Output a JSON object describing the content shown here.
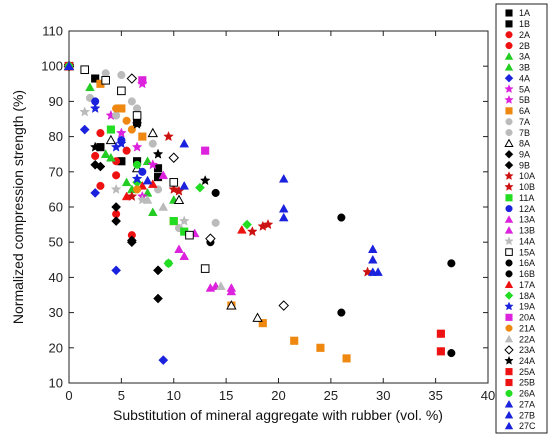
{
  "chart_data": {
    "type": "scatter",
    "xlabel": "Substitution of mineral aggregate with rubber (vol. %)",
    "ylabel": "Normalized compression strength (%)",
    "xlim": [
      0,
      40
    ],
    "ylim": [
      10,
      110
    ],
    "xticks": [
      0,
      5,
      10,
      15,
      20,
      25,
      30,
      35,
      40
    ],
    "yticks": [
      10,
      20,
      30,
      40,
      50,
      60,
      70,
      80,
      90,
      100,
      110
    ],
    "grid": false,
    "legend_position": "right",
    "series": [
      {
        "name": "1A",
        "marker": "square",
        "color": "#000000",
        "filled": true,
        "points": [
          [
            0,
            100
          ],
          [
            2.5,
            96.5
          ],
          [
            5,
            73
          ],
          [
            8.5,
            71
          ],
          [
            8.5,
            68.5
          ]
        ]
      },
      {
        "name": "1B",
        "marker": "square",
        "color": "#000000",
        "filled": true,
        "points": [
          [
            0,
            100
          ],
          [
            3,
            77
          ],
          [
            6.5,
            73
          ],
          [
            6.5,
            84
          ]
        ]
      },
      {
        "name": "2A",
        "marker": "circle",
        "color": "#ee1111",
        "filled": true,
        "points": [
          [
            0,
            100
          ],
          [
            2.5,
            74.5
          ],
          [
            3,
            66
          ],
          [
            4.5,
            58
          ],
          [
            6,
            52
          ]
        ]
      },
      {
        "name": "2B",
        "marker": "circle",
        "color": "#ee1111",
        "filled": true,
        "points": [
          [
            0,
            100
          ],
          [
            3,
            81
          ],
          [
            4.5,
            73
          ],
          [
            5.5,
            76
          ],
          [
            4.5,
            69
          ]
        ]
      },
      {
        "name": "3A",
        "marker": "triangle",
        "color": "#22cc22",
        "filled": true,
        "points": [
          [
            0,
            100
          ],
          [
            2,
            94
          ],
          [
            3.5,
            75
          ],
          [
            5.5,
            67
          ],
          [
            7.5,
            64
          ],
          [
            8,
            58.5
          ]
        ]
      },
      {
        "name": "3B",
        "marker": "triangle",
        "color": "#22cc22",
        "filled": true,
        "points": [
          [
            0,
            100
          ],
          [
            4,
            74
          ],
          [
            6,
            65
          ],
          [
            7.5,
            73
          ],
          [
            10,
            62
          ]
        ]
      },
      {
        "name": "4A",
        "marker": "diamond",
        "color": "#1a22dd",
        "filled": true,
        "points": [
          [
            0,
            100
          ],
          [
            1.5,
            82
          ],
          [
            2.5,
            64
          ],
          [
            4.5,
            42
          ],
          [
            9,
            16.5
          ]
        ]
      },
      {
        "name": "5A",
        "marker": "star",
        "color": "#dd22dd",
        "filled": true,
        "points": [
          [
            0,
            100
          ],
          [
            5,
            81
          ],
          [
            6.5,
            77
          ],
          [
            7,
            63
          ]
        ]
      },
      {
        "name": "5B",
        "marker": "star",
        "color": "#dd22dd",
        "filled": true,
        "points": [
          [
            0,
            100
          ],
          [
            4,
            86
          ],
          [
            7,
            95
          ],
          [
            8,
            72
          ]
        ]
      },
      {
        "name": "6A",
        "marker": "square",
        "color": "#ee8811",
        "filled": true,
        "points": [
          [
            0,
            100
          ],
          [
            3,
            95
          ],
          [
            5,
            88
          ],
          [
            7,
            80
          ],
          [
            10,
            56
          ],
          [
            15.5,
            32
          ],
          [
            18.5,
            27
          ],
          [
            21.5,
            22
          ],
          [
            24,
            20
          ],
          [
            26.5,
            17
          ]
        ]
      },
      {
        "name": "7A",
        "marker": "circle",
        "color": "#bbbbbb",
        "filled": true,
        "points": [
          [
            0,
            100
          ],
          [
            2,
            91
          ],
          [
            3.5,
            98
          ],
          [
            5,
            97.5
          ],
          [
            6,
            90
          ],
          [
            8,
            78
          ]
        ]
      },
      {
        "name": "7B",
        "marker": "circle",
        "color": "#bbbbbb",
        "filled": true,
        "points": [
          [
            0,
            100
          ],
          [
            4.5,
            86
          ],
          [
            6.5,
            88
          ],
          [
            8.5,
            65
          ],
          [
            10.5,
            54
          ],
          [
            14,
            55.5
          ]
        ]
      },
      {
        "name": "8A",
        "marker": "triangle",
        "color": "#000000",
        "filled": false,
        "points": [
          [
            0,
            100
          ],
          [
            4,
            79
          ],
          [
            6.5,
            71
          ],
          [
            8,
            81
          ],
          [
            10.5,
            62
          ],
          [
            15.5,
            32
          ],
          [
            18,
            28.5
          ]
        ]
      },
      {
        "name": "9A",
        "marker": "diamond",
        "color": "#000000",
        "filled": true,
        "points": [
          [
            0,
            100
          ],
          [
            2.5,
            72
          ],
          [
            4.5,
            60
          ],
          [
            6,
            50.5
          ],
          [
            8.5,
            42
          ],
          [
            8.5,
            34
          ]
        ]
      },
      {
        "name": "9B",
        "marker": "diamond",
        "color": "#000000",
        "filled": true,
        "points": [
          [
            0,
            100
          ],
          [
            3,
            71.5
          ],
          [
            4.5,
            56
          ],
          [
            6,
            50
          ],
          [
            8.5,
            42
          ]
        ]
      },
      {
        "name": "10A",
        "marker": "star",
        "color": "#cc1111",
        "filled": true,
        "points": [
          [
            0,
            100
          ],
          [
            9.5,
            80
          ],
          [
            10,
            65
          ],
          [
            17.5,
            53
          ],
          [
            19,
            55
          ]
        ]
      },
      {
        "name": "10B",
        "marker": "star",
        "color": "#cc1111",
        "filled": true,
        "points": [
          [
            0,
            100
          ],
          [
            6,
            63
          ],
          [
            10.5,
            64.5
          ],
          [
            18.5,
            54.5
          ],
          [
            28.5,
            41.5
          ]
        ]
      },
      {
        "name": "11A",
        "marker": "square",
        "color": "#22dd22",
        "filled": true,
        "points": [
          [
            0,
            100
          ],
          [
            4,
            82
          ],
          [
            10,
            56
          ],
          [
            11,
            53
          ]
        ]
      },
      {
        "name": "12A",
        "marker": "circle",
        "color": "#1a22dd",
        "filled": true,
        "points": [
          [
            0,
            100
          ],
          [
            2.5,
            90
          ],
          [
            5,
            79
          ],
          [
            7,
            70
          ]
        ]
      },
      {
        "name": "13A",
        "marker": "triangle",
        "color": "#dd22dd",
        "filled": true,
        "points": [
          [
            0,
            100
          ],
          [
            10.5,
            48
          ],
          [
            11,
            46
          ],
          [
            13.5,
            37
          ],
          [
            15.5,
            37
          ]
        ]
      },
      {
        "name": "13B",
        "marker": "triangle",
        "color": "#dd22dd",
        "filled": true,
        "points": [
          [
            0,
            100
          ],
          [
            9,
            69
          ],
          [
            12,
            52.5
          ],
          [
            14,
            37.5
          ],
          [
            15.5,
            36
          ]
        ]
      },
      {
        "name": "14A",
        "marker": "star",
        "color": "#bbbbbb",
        "filled": true,
        "points": [
          [
            0,
            100
          ],
          [
            1.5,
            87
          ],
          [
            4.5,
            65
          ],
          [
            7,
            62
          ],
          [
            11,
            56
          ]
        ]
      },
      {
        "name": "15A",
        "marker": "square",
        "color": "#000000",
        "filled": false,
        "points": [
          [
            0,
            100
          ],
          [
            1.5,
            99
          ],
          [
            3.5,
            96
          ],
          [
            5,
            93
          ],
          [
            6.5,
            86
          ],
          [
            10,
            67
          ],
          [
            11.5,
            52
          ],
          [
            13,
            42.5
          ]
        ]
      },
      {
        "name": "16A",
        "marker": "circle",
        "color": "#000000",
        "filled": true,
        "points": [
          [
            0,
            100
          ],
          [
            14,
            64
          ],
          [
            26,
            57
          ],
          [
            36.5,
            44
          ]
        ]
      },
      {
        "name": "16B",
        "marker": "circle",
        "color": "#000000",
        "filled": true,
        "points": [
          [
            0,
            100
          ],
          [
            13.5,
            50
          ],
          [
            26,
            30
          ],
          [
            36.5,
            18.5
          ]
        ]
      },
      {
        "name": "17A",
        "marker": "triangle",
        "color": "#ee1111",
        "filled": true,
        "points": [
          [
            0,
            100
          ],
          [
            5.5,
            63
          ],
          [
            7,
            66
          ],
          [
            8,
            66.5
          ],
          [
            16.5,
            53.5
          ]
        ]
      },
      {
        "name": "18A",
        "marker": "diamond",
        "color": "#22dd22",
        "filled": true,
        "points": [
          [
            0,
            100
          ],
          [
            6.5,
            67
          ],
          [
            9.5,
            44
          ],
          [
            12.5,
            65.5
          ],
          [
            17,
            55
          ]
        ]
      },
      {
        "name": "19A",
        "marker": "star",
        "color": "#1a22dd",
        "filled": true,
        "points": [
          [
            0,
            100
          ],
          [
            2.5,
            88
          ],
          [
            4.5,
            77
          ],
          [
            5,
            78
          ],
          [
            6.5,
            68
          ]
        ]
      },
      {
        "name": "20A",
        "marker": "square",
        "color": "#dd22dd",
        "filled": true,
        "points": [
          [
            0,
            100
          ],
          [
            7,
            96
          ],
          [
            13,
            76
          ]
        ]
      },
      {
        "name": "21A",
        "marker": "circle",
        "color": "#ee8811",
        "filled": true,
        "points": [
          [
            0,
            100
          ],
          [
            4.5,
            88
          ],
          [
            5.5,
            84.5
          ],
          [
            6,
            82
          ],
          [
            6.5,
            65
          ]
        ]
      },
      {
        "name": "22A",
        "marker": "triangle",
        "color": "#bbbbbb",
        "filled": true,
        "points": [
          [
            0,
            100
          ],
          [
            7.5,
            62
          ],
          [
            9,
            60
          ],
          [
            14.5,
            37.5
          ]
        ]
      },
      {
        "name": "23A",
        "marker": "diamond",
        "color": "#000000",
        "filled": false,
        "points": [
          [
            0,
            100
          ],
          [
            6,
            96.5
          ],
          [
            10,
            74
          ],
          [
            13.5,
            51
          ],
          [
            20.5,
            32
          ]
        ]
      },
      {
        "name": "24A",
        "marker": "star",
        "color": "#000000",
        "filled": true,
        "points": [
          [
            0,
            100
          ],
          [
            2.5,
            77
          ],
          [
            6.5,
            83.5
          ],
          [
            8.5,
            75
          ],
          [
            13,
            67.5
          ]
        ]
      },
      {
        "name": "25A",
        "marker": "square",
        "color": "#ee1111",
        "filled": true,
        "points": [
          [
            0,
            100
          ],
          [
            35.5,
            24
          ]
        ]
      },
      {
        "name": "25B",
        "marker": "square",
        "color": "#ee1111",
        "filled": true,
        "points": [
          [
            0,
            100
          ],
          [
            35.5,
            19
          ]
        ]
      },
      {
        "name": "26A",
        "marker": "circle",
        "color": "#22dd22",
        "filled": true,
        "points": [
          [
            0,
            100
          ],
          [
            6.5,
            72
          ],
          [
            9.5,
            44
          ]
        ]
      },
      {
        "name": "27A",
        "marker": "triangle",
        "color": "#1a22dd",
        "filled": true,
        "points": [
          [
            0,
            100
          ],
          [
            11,
            78
          ],
          [
            20.5,
            68
          ],
          [
            29,
            48
          ],
          [
            29,
            41.5
          ]
        ]
      },
      {
        "name": "27B",
        "marker": "triangle",
        "color": "#1a22dd",
        "filled": true,
        "points": [
          [
            0,
            100
          ],
          [
            11,
            66
          ],
          [
            20.5,
            59.5
          ],
          [
            29,
            45
          ]
        ]
      },
      {
        "name": "27C",
        "marker": "triangle",
        "color": "#1a22dd",
        "filled": true,
        "points": [
          [
            0,
            100
          ],
          [
            7.5,
            67.5
          ],
          [
            20.5,
            57
          ],
          [
            29.5,
            41.5
          ]
        ]
      }
    ]
  }
}
